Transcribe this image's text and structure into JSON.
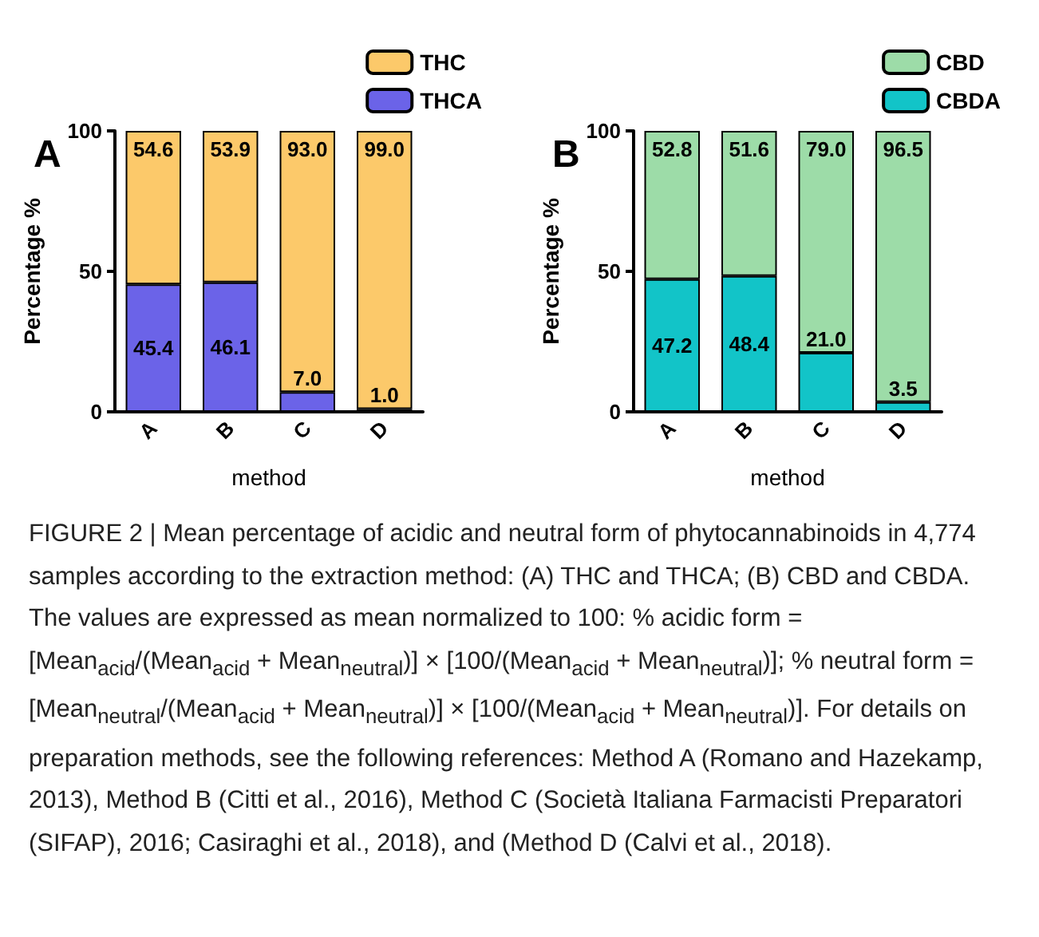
{
  "chart_data": [
    {
      "type": "bar",
      "title": "A",
      "xlabel": "method",
      "ylabel": "Percentage %",
      "categories": [
        "A",
        "B",
        "C",
        "D"
      ],
      "stacked": true,
      "ylim": [
        0,
        100
      ],
      "yticks": [
        0,
        50,
        100
      ],
      "grid": false,
      "legend": "top right",
      "series": [
        {
          "name": "THCA",
          "color": "#6b63e8",
          "values": [
            45.4,
            46.1,
            7.0,
            1.0
          ],
          "value_labels": [
            "45.4",
            "46.1",
            "7.0",
            "1.0"
          ]
        },
        {
          "name": "THC",
          "color": "#fcc96a",
          "values": [
            54.6,
            53.9,
            93.0,
            99.0
          ],
          "value_labels": [
            "54.6",
            "53.9",
            "93.0",
            "99.0"
          ]
        }
      ]
    },
    {
      "type": "bar",
      "title": "B",
      "xlabel": "method",
      "ylabel": "Percentage %",
      "categories": [
        "A",
        "B",
        "C",
        "D"
      ],
      "stacked": true,
      "ylim": [
        0,
        100
      ],
      "yticks": [
        0,
        50,
        100
      ],
      "grid": false,
      "legend": "top right",
      "series": [
        {
          "name": "CBDA",
          "color": "#12c4c8",
          "values": [
            47.2,
            48.4,
            21.0,
            3.5
          ],
          "value_labels": [
            "47.2",
            "48.4",
            "21.0",
            "3.5"
          ]
        },
        {
          "name": "CBD",
          "color": "#9ddca8",
          "values": [
            52.8,
            51.6,
            79.0,
            96.5
          ],
          "value_labels": [
            "52.8",
            "51.6",
            "79.0",
            "96.5"
          ]
        }
      ]
    },
    {
      "type": "other",
      "annotations": [
        "FIGURE 2 | Mean percentage of acidic and neutral form of phytocannabinoids in 4,774 samples according to the extraction method: (A) THC and THCA; (B) CBD and CBDA. The values are expressed as mean normalized to 100: % acidic form = [Mean$_{acid}$/(Mean$_{acid}$ + Mean$_{neutral}$)] × [100/(Mean$_{acid}$ + Mean$_{neutral}$)]; % neutral form = [Mean$_{neutral}$/(Mean$_{acid}$ + Mean$_{neutral}$)] × [100/(Mean$_{acid}$ + Mean$_{neutral}$)]. For details on preparation methods, see the following references: Method A (Romano and Hazekamp, 2013), Method B (Citti et al., 2016), Method C (Società Italiana Farmacisti Preparatori (SIFAP), 2016; Casiraghi et al., 2018), and (Method D (Calvi et al., 2018)."
      ]
    }
  ]
}
